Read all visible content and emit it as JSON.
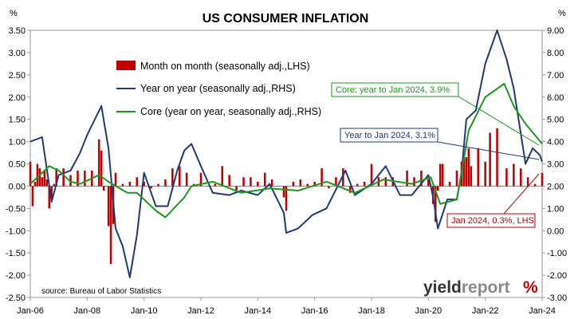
{
  "chart_data": {
    "type": "bar",
    "title": "US CONSUMER INFLATION",
    "left_axis": {
      "unit": "%",
      "ylim": [
        -2.5,
        3.5
      ],
      "ticks": [
        "3.50",
        "3.00",
        "2.50",
        "2.00",
        "1.50",
        "1.00",
        "0.50",
        "0.00",
        "-0.50",
        "-1.00",
        "-1.50",
        "-2.00",
        "-2.50"
      ]
    },
    "right_axis": {
      "unit": "%",
      "ylim": [
        -3.0,
        9.0
      ],
      "ticks": [
        "9.00",
        "8.00",
        "7.00",
        "6.00",
        "5.00",
        "4.00",
        "3.00",
        "2.00",
        "1.00",
        "0.00",
        "-1.00",
        "-2.00",
        "-3.00"
      ]
    },
    "xlim": [
      "2006-01",
      "2024-01"
    ],
    "x_ticks": [
      "Jan-06",
      "Jan-08",
      "Jan-10",
      "Jan-12",
      "Jan-14",
      "Jan-16",
      "Jan-18",
      "Jan-20",
      "Jan-22",
      "Jan-24"
    ],
    "grid": false,
    "legend_placement": "top-left",
    "series": [
      {
        "name": "Month on month (seasonally adj.,LHS)",
        "type": "bar",
        "axis": "left",
        "color": "#c00000",
        "x": [
          "2006-01",
          "2006-02",
          "2006-03",
          "2006-04",
          "2006-05",
          "2006-06",
          "2006-07",
          "2006-08",
          "2006-09",
          "2006-10",
          "2006-11",
          "2006-12",
          "2007-03",
          "2007-06",
          "2007-09",
          "2007-12",
          "2008-03",
          "2008-06",
          "2008-07",
          "2008-08",
          "2008-09",
          "2008-10",
          "2008-11",
          "2008-12",
          "2009-01",
          "2009-04",
          "2009-07",
          "2009-10",
          "2010-01",
          "2010-04",
          "2010-07",
          "2010-10",
          "2011-01",
          "2011-04",
          "2011-07",
          "2011-10",
          "2012-01",
          "2012-04",
          "2012-07",
          "2012-10",
          "2013-01",
          "2013-04",
          "2013-07",
          "2013-10",
          "2014-01",
          "2014-04",
          "2014-07",
          "2014-10",
          "2014-12",
          "2015-01",
          "2015-04",
          "2015-07",
          "2015-10",
          "2016-01",
          "2016-04",
          "2016-07",
          "2016-10",
          "2017-01",
          "2017-04",
          "2017-07",
          "2017-10",
          "2018-01",
          "2018-04",
          "2018-07",
          "2018-10",
          "2019-01",
          "2019-04",
          "2019-07",
          "2019-10",
          "2020-01",
          "2020-03",
          "2020-04",
          "2020-05",
          "2020-06",
          "2020-07",
          "2020-10",
          "2021-01",
          "2021-03",
          "2021-04",
          "2021-05",
          "2021-06",
          "2021-07",
          "2021-10",
          "2022-01",
          "2022-03",
          "2022-06",
          "2022-07",
          "2022-10",
          "2023-01",
          "2023-04",
          "2023-07",
          "2023-10",
          "2024-01"
        ],
        "values": [
          0.55,
          -0.45,
          0.1,
          0.5,
          0.4,
          0.2,
          0.35,
          0.15,
          -0.5,
          -0.3,
          0.05,
          0.4,
          0.4,
          0.25,
          0.35,
          0.35,
          0.35,
          1.05,
          0.8,
          -0.1,
          0.0,
          -0.9,
          -1.75,
          -0.85,
          0.3,
          0.05,
          0.1,
          0.2,
          0.1,
          -0.05,
          0.05,
          0.15,
          0.4,
          0.45,
          0.3,
          0.05,
          0.3,
          0.0,
          0.05,
          0.45,
          0.25,
          -0.15,
          0.2,
          0.2,
          0.1,
          0.3,
          0.15,
          0.0,
          -0.25,
          -0.55,
          0.1,
          0.15,
          0.05,
          0.1,
          0.4,
          -0.05,
          0.2,
          0.4,
          -0.15,
          0.05,
          0.1,
          0.5,
          0.2,
          0.2,
          0.2,
          0.0,
          0.35,
          0.2,
          0.35,
          0.15,
          -0.4,
          -0.8,
          -0.1,
          0.5,
          0.5,
          0.1,
          0.35,
          0.55,
          0.75,
          0.65,
          0.85,
          0.45,
          0.85,
          0.55,
          1.2,
          1.3,
          0.0,
          0.4,
          0.5,
          0.4,
          0.2,
          0.05,
          0.3
        ]
      },
      {
        "name": "Year on year (seasonally adj.,RHS)",
        "type": "line",
        "axis": "right",
        "color": "#1f3a7a",
        "x": [
          "2006-01",
          "2006-06",
          "2006-10",
          "2007-01",
          "2007-06",
          "2007-10",
          "2008-01",
          "2008-07",
          "2008-10",
          "2009-01",
          "2009-04",
          "2009-07",
          "2009-10",
          "2010-01",
          "2010-06",
          "2010-11",
          "2011-03",
          "2011-06",
          "2011-09",
          "2012-01",
          "2012-06",
          "2013-01",
          "2013-06",
          "2014-01",
          "2014-06",
          "2014-12",
          "2015-01",
          "2015-06",
          "2015-12",
          "2016-06",
          "2017-02",
          "2017-06",
          "2018-01",
          "2018-07",
          "2019-01",
          "2019-06",
          "2020-01",
          "2020-03",
          "2020-05",
          "2020-09",
          "2021-01",
          "2021-03",
          "2021-05",
          "2021-09",
          "2022-01",
          "2022-06",
          "2022-10",
          "2023-01",
          "2023-06",
          "2023-09",
          "2023-12",
          "2024-01"
        ],
        "values": [
          4.0,
          4.2,
          1.3,
          2.5,
          2.7,
          3.5,
          4.3,
          5.6,
          3.7,
          0.1,
          -0.7,
          -2.1,
          -0.2,
          2.6,
          1.1,
          1.1,
          2.7,
          3.6,
          3.9,
          2.9,
          1.7,
          1.6,
          1.8,
          1.6,
          2.1,
          0.8,
          -0.1,
          0.1,
          0.7,
          1.0,
          2.7,
          1.6,
          2.1,
          2.9,
          1.6,
          1.6,
          2.5,
          1.5,
          0.1,
          1.4,
          1.4,
          2.6,
          5.0,
          5.4,
          7.5,
          9.0,
          7.7,
          6.4,
          3.0,
          3.7,
          3.4,
          3.1
        ]
      },
      {
        "name": "Core (year on year, seasonally adj.,RHS)",
        "type": "line",
        "axis": "right",
        "color": "#1a9a1a",
        "x": [
          "2006-01",
          "2006-09",
          "2007-01",
          "2007-06",
          "2007-10",
          "2008-06",
          "2008-10",
          "2009-06",
          "2009-10",
          "2010-06",
          "2010-10",
          "2011-06",
          "2011-09",
          "2012-06",
          "2013-06",
          "2014-06",
          "2015-06",
          "2016-06",
          "2017-06",
          "2018-06",
          "2019-06",
          "2020-02",
          "2020-06",
          "2021-01",
          "2021-06",
          "2022-01",
          "2022-09",
          "2023-01",
          "2023-06",
          "2024-01"
        ],
        "values": [
          2.1,
          2.9,
          2.7,
          2.2,
          2.1,
          2.5,
          2.2,
          1.7,
          1.7,
          0.9,
          0.6,
          1.5,
          2.0,
          2.2,
          1.7,
          1.9,
          1.8,
          2.2,
          1.7,
          2.3,
          2.1,
          2.4,
          1.2,
          1.4,
          4.5,
          6.0,
          6.6,
          5.6,
          4.8,
          3.9
        ]
      }
    ],
    "annotations": [
      {
        "text": "Core: year to Jan 2024, 3.9%",
        "color": "#1a9a1a"
      },
      {
        "text": "Year to Jan 2024, 3.1%",
        "color": "#1f3a7a"
      },
      {
        "text": "Jan 2024, 0.3%, LHS",
        "color": "#c00000"
      }
    ],
    "source": "source: Bureau of Labor Statistics"
  },
  "logo": {
    "text_light": "yield",
    "text_dark": "report",
    "symbol": "%"
  }
}
